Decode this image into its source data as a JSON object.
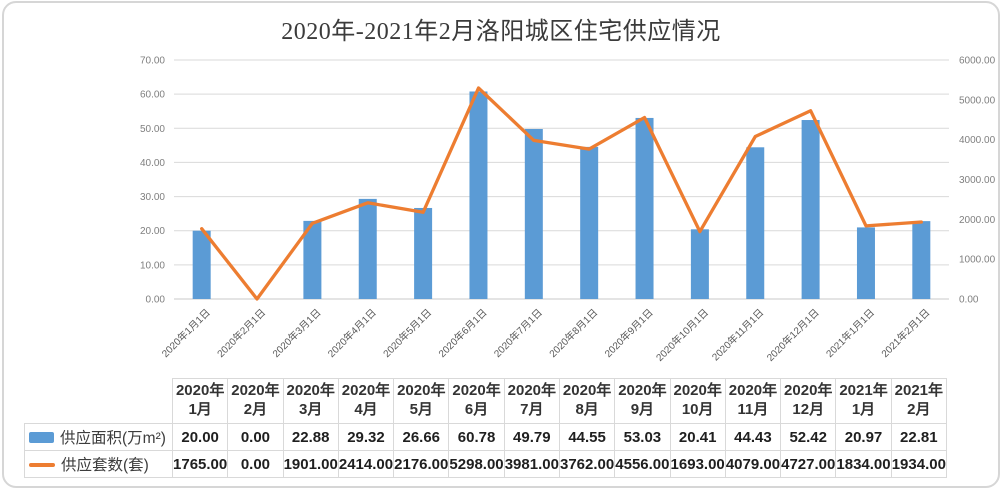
{
  "chart_data": {
    "type": "combo-bar-line",
    "title": "2020年-2021年2月洛阳城区住宅供应情况",
    "categories": [
      "2020年1月1日",
      "2020年2月1日",
      "2020年3月1日",
      "2020年4月1日",
      "2020年5月1日",
      "2020年6月1日",
      "2020年7月1日",
      "2020年8月1日",
      "2020年9月1日",
      "2020年10月1日",
      "2020年11月1日",
      "2020年12月1日",
      "2021年1月1日",
      "2021年2月1日"
    ],
    "series": [
      {
        "name": "供应面积(万m²)",
        "type": "bar",
        "axis": "left",
        "color": "#5B9BD5",
        "values": [
          20.0,
          0.0,
          22.88,
          29.32,
          26.66,
          60.78,
          49.79,
          44.55,
          53.03,
          20.41,
          44.43,
          52.42,
          20.97,
          22.81
        ]
      },
      {
        "name": "供应套数(套)",
        "type": "line",
        "axis": "right",
        "color": "#ED7D31",
        "values": [
          1765.0,
          0.0,
          1901.0,
          2414.0,
          2176.0,
          5298.0,
          3981.0,
          3762.0,
          4556.0,
          1693.0,
          4079.0,
          4727.0,
          1834.0,
          1934.0
        ]
      }
    ],
    "left_axis": {
      "min": 0,
      "max": 70,
      "step": 10,
      "tick_labels": [
        "0.00",
        "10.00",
        "20.00",
        "30.00",
        "40.00",
        "50.00",
        "60.00",
        "70.00"
      ]
    },
    "right_axis": {
      "min": 0,
      "max": 6000,
      "step": 1000,
      "tick_labels": [
        "0.00",
        "1000.00",
        "2000.00",
        "3000.00",
        "4000.00",
        "5000.00",
        "6000.00"
      ]
    },
    "grid": true,
    "legend_position": "table-left"
  },
  "table": {
    "column_headers": [
      {
        "line1": "2020年",
        "line2": "1月"
      },
      {
        "line1": "2020年",
        "line2": "2月"
      },
      {
        "line1": "2020年",
        "line2": "3月"
      },
      {
        "line1": "2020年",
        "line2": "4月"
      },
      {
        "line1": "2020年",
        "line2": "5月"
      },
      {
        "line1": "2020年",
        "line2": "6月"
      },
      {
        "line1": "2020年",
        "line2": "7月"
      },
      {
        "line1": "2020年",
        "line2": "8月"
      },
      {
        "line1": "2020年",
        "line2": "9月"
      },
      {
        "line1": "2020年",
        "line2": "10月"
      },
      {
        "line1": "2020年",
        "line2": "11月"
      },
      {
        "line1": "2020年",
        "line2": "12月"
      },
      {
        "line1": "2021年",
        "line2": "1月"
      },
      {
        "line1": "2021年",
        "line2": "2月"
      }
    ],
    "rows": [
      {
        "label": "供应面积(万m²)",
        "swatch": "bar",
        "color": "#5B9BD5",
        "values": [
          "20.00",
          "0.00",
          "22.88",
          "29.32",
          "26.66",
          "60.78",
          "49.79",
          "44.55",
          "53.03",
          "20.41",
          "44.43",
          "52.42",
          "20.97",
          "22.81"
        ]
      },
      {
        "label": "供应套数(套)",
        "swatch": "line",
        "color": "#ED7D31",
        "values": [
          "1765.00",
          "0.00",
          "1901.00",
          "2414.00",
          "2176.00",
          "5298.00",
          "3981.00",
          "3762.00",
          "4556.00",
          "1693.00",
          "4079.00",
          "4727.00",
          "1834.00",
          "1934.00"
        ]
      }
    ]
  }
}
